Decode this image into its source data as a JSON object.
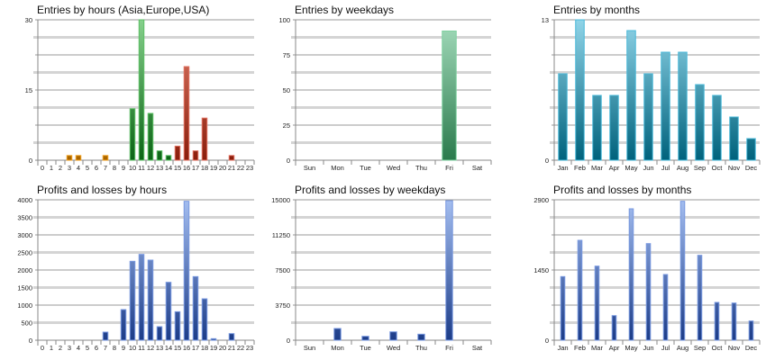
{
  "chart_data": [
    {
      "type": "bar",
      "title": "Entries by hours (Asia,Europe,USA)",
      "categories": [
        "0",
        "1",
        "2",
        "3",
        "4",
        "5",
        "6",
        "7",
        "8",
        "9",
        "10",
        "11",
        "12",
        "13",
        "14",
        "15",
        "16",
        "17",
        "18",
        "19",
        "20",
        "21",
        "22",
        "23"
      ],
      "ylim": [
        0,
        30
      ],
      "yticks": [
        "0",
        "15",
        "30"
      ],
      "series": [
        {
          "name": "Asia",
          "color_top": "#f2b040",
          "color_bottom": "#a86400",
          "border": "#f0a020",
          "values": [
            0,
            0,
            0,
            1,
            1,
            0,
            0,
            1,
            0,
            0,
            0,
            0,
            0,
            0,
            0,
            0,
            0,
            0,
            0,
            0,
            0,
            0,
            0,
            0
          ]
        },
        {
          "name": "Europe",
          "color_top": "#86d08c",
          "color_bottom": "#0b6415",
          "border": "#5cbf65",
          "values": [
            0,
            0,
            0,
            0,
            0,
            0,
            0,
            0,
            0,
            0,
            11,
            30,
            10,
            2,
            1,
            0,
            0,
            0,
            0,
            0,
            0,
            0,
            0,
            0
          ]
        },
        {
          "name": "USA",
          "color_top": "#e4826e",
          "color_bottom": "#8a1e0c",
          "border": "#e07060",
          "values": [
            0,
            0,
            0,
            0,
            0,
            0,
            0,
            0,
            0,
            0,
            0,
            0,
            0,
            0,
            0,
            3,
            20,
            2,
            9,
            0,
            0,
            1,
            0,
            0
          ]
        }
      ]
    },
    {
      "type": "bar",
      "title": "Entries by weekdays",
      "categories": [
        "Sun",
        "Mon",
        "Tue",
        "Wed",
        "Thu",
        "Fri",
        "Sat"
      ],
      "ylim": [
        0,
        100
      ],
      "yticks": [
        "0",
        "25",
        "50",
        "75",
        "100"
      ],
      "series": [
        {
          "name": "Entries",
          "color_top": "#a4dcbc",
          "color_bottom": "#2a7a4c",
          "border": "#7fd0a0",
          "values": [
            0,
            0,
            0,
            0,
            0,
            92,
            0
          ]
        }
      ]
    },
    {
      "type": "bar",
      "title": "Entries by months",
      "categories": [
        "Jan",
        "Feb",
        "Mar",
        "Apr",
        "May",
        "Jun",
        "Jul",
        "Aug",
        "Sep",
        "Oct",
        "Nov",
        "Dec"
      ],
      "ylim": [
        0,
        13
      ],
      "yticks": [
        "0",
        "13"
      ],
      "series": [
        {
          "name": "Entries",
          "color_top": "#90d4e8",
          "color_bottom": "#00627c",
          "border": "#48b8d8",
          "values": [
            8,
            13,
            6,
            6,
            12,
            8,
            10,
            10,
            7,
            6,
            4,
            2
          ]
        }
      ]
    },
    {
      "type": "bar",
      "title": "Profits and losses by hours",
      "categories": [
        "0",
        "1",
        "2",
        "3",
        "4",
        "5",
        "6",
        "7",
        "8",
        "9",
        "10",
        "11",
        "12",
        "13",
        "14",
        "15",
        "16",
        "17",
        "18",
        "19",
        "20",
        "21",
        "22",
        "23"
      ],
      "ylim": [
        0,
        4000
      ],
      "yticks": [
        "0",
        "500",
        "1000",
        "1500",
        "2000",
        "2500",
        "3000",
        "3500",
        "4000"
      ],
      "series": [
        {
          "name": "Profit",
          "color_top": "#a4bef0",
          "color_bottom": "#1c3c88",
          "border": "#7898e0",
          "values": [
            0,
            0,
            0,
            0,
            0,
            0,
            0,
            231,
            0,
            872,
            2248,
            2444,
            2282,
            385,
            1650,
            812,
            3957,
            1812,
            1179,
            43,
            0,
            188,
            0,
            0
          ]
        }
      ]
    },
    {
      "type": "bar",
      "title": "Profits and losses by weekdays",
      "categories": [
        "Sun",
        "Mon",
        "Tue",
        "Wed",
        "Thu",
        "Fri",
        "Sat"
      ],
      "ylim": [
        0,
        15000
      ],
      "yticks": [
        "0",
        "3750",
        "7500",
        "11250",
        "15000"
      ],
      "series": [
        {
          "name": "Profit",
          "color_top": "#a4bef0",
          "color_bottom": "#1c3c88",
          "border": "#7898e0",
          "values": [
            0,
            1250,
            417,
            897,
            641,
            14904,
            0
          ]
        }
      ]
    },
    {
      "type": "bar",
      "title": "Profits and losses by months",
      "categories": [
        "Jan",
        "Feb",
        "Mar",
        "Apr",
        "May",
        "Jun",
        "Jul",
        "Aug",
        "Sep",
        "Oct",
        "Nov",
        "Dec"
      ],
      "ylim": [
        0,
        2900
      ],
      "yticks": [
        "0",
        "1450",
        "2900"
      ],
      "series": [
        {
          "name": "Profit",
          "color_top": "#a4bef0",
          "color_bottom": "#1c3c88",
          "border": "#7898e0",
          "values": [
            1314,
            2063,
            1530,
            508,
            2714,
            1995,
            1357,
            2869,
            1754,
            781,
            768,
            397
          ]
        }
      ]
    }
  ]
}
